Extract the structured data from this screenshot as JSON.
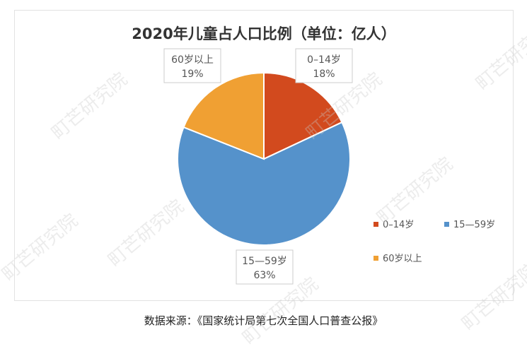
{
  "chart_data": {
    "type": "pie",
    "title": "2020年儿童占人口比例（单位：亿人）",
    "slices": [
      {
        "label": "0–14岁",
        "value": 18,
        "display": "18%",
        "color": "#D24A1E"
      },
      {
        "label": "15—59岁",
        "value": 63,
        "display": "63%",
        "color": "#5592CB"
      },
      {
        "label": "60岁以上",
        "value": 19,
        "display": "19%",
        "color": "#F0A033"
      }
    ],
    "start_angle": "top",
    "direction": "clockwise",
    "legend_placement": "bottom-right"
  },
  "source": "数据来源：《国家统计局第七次全国人口普查公报》",
  "watermark": "町芒研究院"
}
